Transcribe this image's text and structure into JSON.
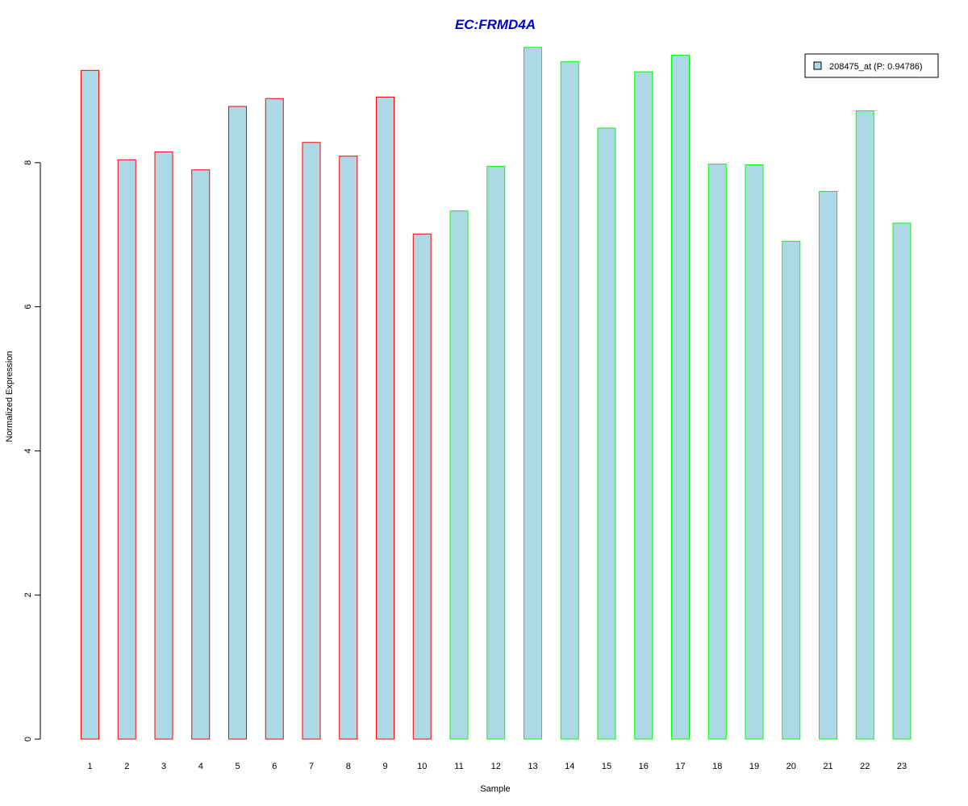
{
  "chart_data": {
    "type": "bar",
    "title": "EC:FRMD4A",
    "xlabel": "Sample",
    "ylabel": "Normalized Expression",
    "categories": [
      "1",
      "2",
      "3",
      "4",
      "5",
      "6",
      "7",
      "8",
      "9",
      "10",
      "11",
      "12",
      "13",
      "14",
      "15",
      "16",
      "17",
      "18",
      "19",
      "20",
      "21",
      "22",
      "23"
    ],
    "values": [
      9.28,
      8.04,
      8.15,
      7.9,
      8.78,
      8.89,
      8.28,
      8.09,
      8.91,
      7.01,
      7.33,
      7.95,
      9.6,
      9.4,
      8.48,
      9.26,
      9.49,
      7.98,
      7.97,
      6.91,
      7.6,
      8.72,
      7.16
    ],
    "groups": [
      1,
      1,
      1,
      1,
      1,
      1,
      1,
      1,
      1,
      1,
      2,
      2,
      2,
      2,
      2,
      2,
      2,
      2,
      2,
      2,
      2,
      2,
      2
    ],
    "ylim": [
      0,
      9.6
    ],
    "yticks": [
      0,
      2,
      4,
      6,
      8
    ],
    "grid": false,
    "legend": {
      "placement": "top-right",
      "entries": [
        "208475_at (P: 0.94786)"
      ]
    },
    "colors": {
      "bar_fill": "#add8e6",
      "group1_border": "#ff0000",
      "group2_border": "#00ff00",
      "title": "#0000cd",
      "axis": "#000000"
    }
  }
}
